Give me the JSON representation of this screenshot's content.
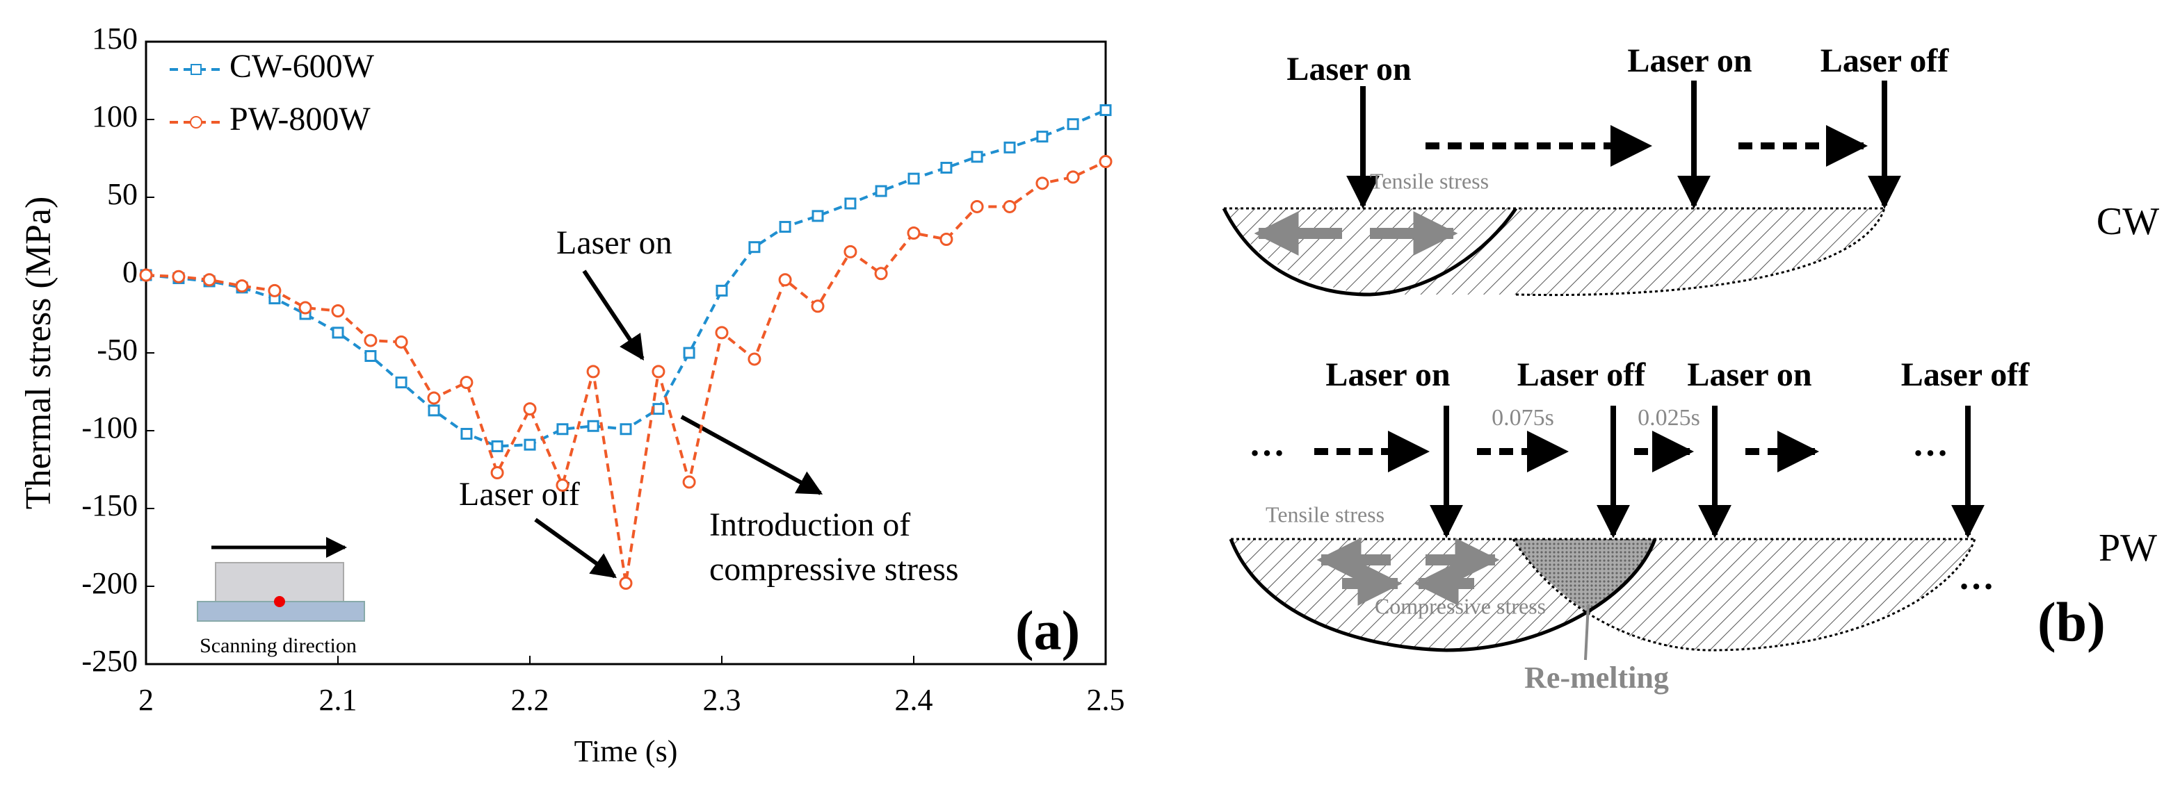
{
  "chart_data": {
    "type": "line",
    "x_label": "Time (s)",
    "y_label": "Thermal stress (MPa)",
    "x": [
      2,
      2.017,
      2.033,
      2.05,
      2.067,
      2.083,
      2.1,
      2.117,
      2.133,
      2.15,
      2.167,
      2.183,
      2.2,
      2.217,
      2.233,
      2.25,
      2.267,
      2.283,
      2.3,
      2.317,
      2.333,
      2.35,
      2.367,
      2.383,
      2.4,
      2.417,
      2.433,
      2.45,
      2.467,
      2.483,
      2.5
    ],
    "series": [
      {
        "name": "CW-600W",
        "color": "#1f8fd0",
        "marker": "square",
        "values": [
          0,
          -2,
          -4,
          -8,
          -15,
          -25,
          -37,
          -52,
          -69,
          -87,
          -102,
          -110,
          -109,
          -99,
          -97,
          -99,
          -86,
          -50,
          -10,
          18,
          31,
          38,
          46,
          54,
          62,
          69,
          76,
          82,
          89,
          97,
          106
        ]
      },
      {
        "name": "PW-800W",
        "color": "#f05a28",
        "marker": "circle",
        "values": [
          0,
          -1,
          -3,
          -7,
          -10,
          -21,
          -23,
          -42,
          -43,
          -79,
          -69,
          -127,
          -86,
          -135,
          -62,
          -198,
          -62,
          -133,
          -37,
          -54,
          -3,
          -20,
          15,
          1,
          27,
          23,
          44,
          44,
          59,
          63,
          73
        ]
      }
    ],
    "xlim": [
      2,
      2.5
    ],
    "xticks": [
      2,
      2.1,
      2.2,
      2.3,
      2.4,
      2.5
    ],
    "ylim": [
      -250,
      150
    ],
    "yticks": [
      -250,
      -200,
      -150,
      -100,
      -50,
      0,
      50,
      100,
      150
    ],
    "annotations": [
      "Laser on",
      "Laser off",
      "Introduction of",
      "compressive stress"
    ],
    "inset_label": "Scanning direction",
    "panel_label": "(a)"
  },
  "diagram": {
    "cw": {
      "labels": [
        "Laser on",
        "Laser on",
        "Laser off"
      ],
      "tensile": "Tensile stress",
      "mode": "CW"
    },
    "pw": {
      "labels": [
        "Laser on",
        "Laser off",
        "Laser on",
        "Laser off"
      ],
      "times": [
        "0.075s",
        "0.025s"
      ],
      "tensile": "Tensile stress",
      "compressive": "Compressive stress",
      "remelting": "Re-melting",
      "mode": "PW"
    },
    "panel_label": "(b)"
  }
}
